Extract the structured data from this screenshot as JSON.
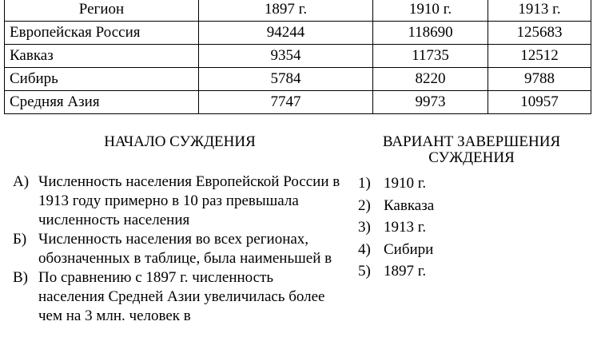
{
  "table": {
    "headers": [
      "Регион",
      "1897 г.",
      "1910 г.",
      "1913 г."
    ],
    "rows": [
      [
        "Европейская Россия",
        "94244",
        "118690",
        "125683"
      ],
      [
        "Кавказ",
        "9354",
        "11735",
        "12512"
      ],
      [
        "Сибирь",
        "5784",
        "8220",
        "9788"
      ],
      [
        "Средняя Азия",
        "7747",
        "9973",
        "10957"
      ]
    ]
  },
  "left": {
    "title": "НАЧАЛО СУЖДЕНИЯ",
    "items": [
      {
        "n": "А)",
        "t": "Численность населения Европейской России в 1913 году примерно в 10 раз превышала численность населения"
      },
      {
        "n": "Б)",
        "t": "Численность населения во всех регионах, обозначенных в таблице, была наименьшей в"
      },
      {
        "n": "В)",
        "t": "По сравнению с 1897 г. численность населения Средней Азии увеличилась более чем на 3 млн. человек в"
      }
    ]
  },
  "right": {
    "title": "ВАРИАНТ ЗАВЕРШЕНИЯ СУЖДЕНИЯ",
    "items": [
      {
        "n": "1)",
        "t": "1910 г."
      },
      {
        "n": "2)",
        "t": "Кавказа"
      },
      {
        "n": "3)",
        "t": "1913 г."
      },
      {
        "n": "4)",
        "t": "Сибири"
      },
      {
        "n": "5)",
        "t": "1897 г."
      }
    ]
  }
}
